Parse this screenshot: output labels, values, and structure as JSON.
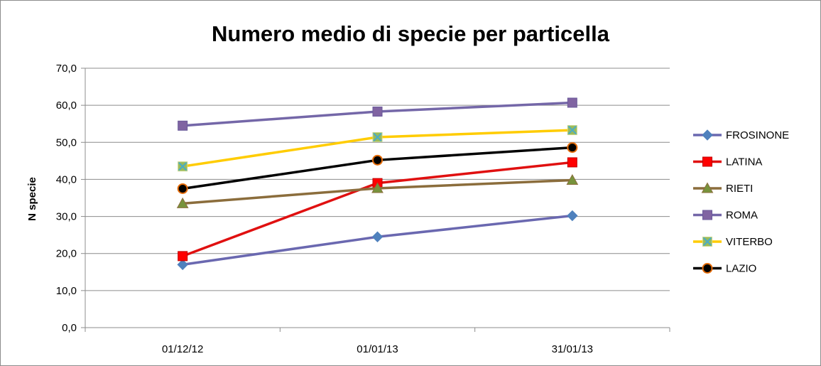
{
  "chart_data": {
    "type": "line",
    "title": "Numero medio di specie per particella",
    "xlabel": "",
    "ylabel": "N specie",
    "categories": [
      "01/12/12",
      "01/01/13",
      "31/01/13"
    ],
    "ylim": [
      0,
      70
    ],
    "ytick_step": 10,
    "ytick_labels": [
      "0,0",
      "10,0",
      "20,0",
      "30,0",
      "40,0",
      "50,0",
      "60,0",
      "70,0"
    ],
    "grid": true,
    "legend": "right",
    "series": [
      {
        "name": "FROSINONE",
        "values": [
          17.0,
          24.5,
          30.2
        ],
        "color": "#6a68b0",
        "marker": "diamond",
        "marker_fill": "#4f81bd",
        "marker_stroke": "#4f81bd"
      },
      {
        "name": "LATINA",
        "values": [
          19.3,
          39.0,
          44.6
        ],
        "color": "#e01010",
        "marker": "square",
        "marker_fill": "#ff0000",
        "marker_stroke": "#c00000"
      },
      {
        "name": "RIETI",
        "values": [
          33.5,
          37.6,
          39.8
        ],
        "color": "#8b6d3c",
        "marker": "triangle",
        "marker_fill": "#77933c",
        "marker_stroke": "#8b6d3c"
      },
      {
        "name": "ROMA",
        "values": [
          54.5,
          58.3,
          60.7
        ],
        "color": "#7467a8",
        "marker": "square",
        "marker_fill": "#8064a2",
        "marker_stroke": "#6a5a9a"
      },
      {
        "name": "VITERBO",
        "values": [
          43.5,
          51.4,
          53.3
        ],
        "color": "#ffcc00",
        "marker": "x-square",
        "marker_fill": "#9bbb59",
        "marker_stroke": "#4bacc6"
      },
      {
        "name": "LAZIO",
        "values": [
          37.5,
          45.2,
          48.6
        ],
        "color": "#000000",
        "marker": "circle",
        "marker_fill": "#000000",
        "marker_stroke": "#e46c0a"
      }
    ]
  }
}
